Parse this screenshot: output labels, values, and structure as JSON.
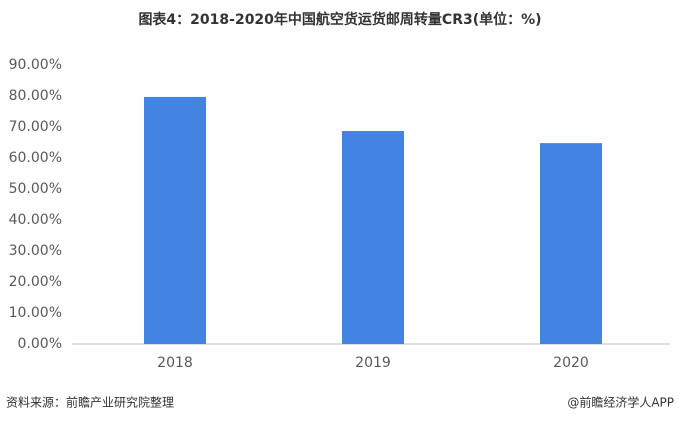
{
  "chart_data": {
    "type": "bar",
    "title": "图表4：2018-2020年中国航空货运货邮周转量CR3(单位：%)",
    "categories": [
      "2018",
      "2019",
      "2020"
    ],
    "values": [
      79.7,
      68.7,
      64.8
    ],
    "color": "#4384e2",
    "ylim": [
      0,
      90
    ],
    "yticks": [
      {
        "value": 0,
        "label": "0.00%"
      },
      {
        "value": 10,
        "label": "10.00%"
      },
      {
        "value": 20,
        "label": "20.00%"
      },
      {
        "value": 30,
        "label": "30.00%"
      },
      {
        "value": 40,
        "label": "40.00%"
      },
      {
        "value": 50,
        "label": "50.00%"
      },
      {
        "value": 60,
        "label": "60.00%"
      },
      {
        "value": 70,
        "label": "70.00%"
      },
      {
        "value": 80,
        "label": "80.00%"
      },
      {
        "value": 90,
        "label": "90.00%"
      }
    ],
    "grid": false,
    "source": "资料来源：前瞻产业研究院整理",
    "credit": "@前瞻经济学人APP"
  }
}
